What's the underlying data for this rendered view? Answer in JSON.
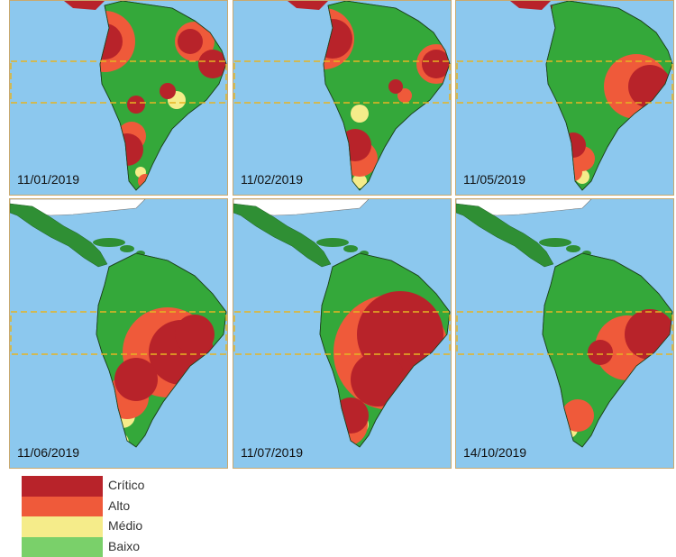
{
  "panels": [
    {
      "date": "11/01/2019",
      "view": "south",
      "crit": [
        [
          105,
          45,
          20
        ],
        [
          200,
          45,
          14
        ],
        [
          225,
          70,
          16
        ],
        [
          130,
          165,
          18
        ],
        [
          175,
          100,
          9
        ],
        [
          140,
          115,
          10
        ]
      ],
      "alto": [
        [
          105,
          45,
          34
        ],
        [
          205,
          45,
          22
        ],
        [
          135,
          150,
          16
        ],
        [
          150,
          200,
          8
        ]
      ],
      "medio": [
        [
          185,
          110,
          10
        ],
        [
          145,
          190,
          6
        ]
      ]
    },
    {
      "date": "11/02/2019",
      "view": "south",
      "crit": [
        [
          110,
          42,
          22
        ],
        [
          225,
          70,
          16
        ],
        [
          135,
          160,
          18
        ],
        [
          180,
          95,
          8
        ]
      ],
      "alto": [
        [
          100,
          42,
          34
        ],
        [
          225,
          70,
          22
        ],
        [
          140,
          175,
          20
        ],
        [
          190,
          105,
          8
        ]
      ],
      "medio": [
        [
          140,
          125,
          10
        ],
        [
          140,
          200,
          8
        ]
      ]
    },
    {
      "date": "11/05/2019",
      "view": "south",
      "crit": [
        [
          215,
          95,
          24
        ],
        [
          130,
          160,
          14
        ],
        [
          95,
          5,
          12
        ]
      ],
      "alto": [
        [
          200,
          95,
          36
        ],
        [
          140,
          175,
          14
        ],
        [
          130,
          190,
          10
        ]
      ],
      "medio": [
        [
          140,
          195,
          8
        ]
      ]
    },
    {
      "date": "11/06/2019",
      "view": "all",
      "crit": [
        [
          190,
          170,
          36
        ],
        [
          140,
          200,
          24
        ],
        [
          205,
          150,
          22
        ],
        [
          25,
          40,
          10
        ]
      ],
      "alto": [
        [
          175,
          170,
          50
        ],
        [
          130,
          220,
          24
        ]
      ],
      "medio": [
        [
          125,
          240,
          14
        ],
        [
          120,
          270,
          12
        ]
      ]
    },
    {
      "date": "11/07/2019",
      "view": "all",
      "crit": [
        [
          185,
          150,
          48
        ],
        [
          160,
          200,
          30
        ],
        [
          40,
          40,
          10
        ],
        [
          130,
          240,
          20
        ]
      ],
      "alto": [
        [
          175,
          170,
          64
        ],
        [
          125,
          250,
          24
        ]
      ],
      "medio": [
        [
          120,
          270,
          12
        ],
        [
          140,
          250,
          10
        ]
      ]
    },
    {
      "date": "14/10/2019",
      "view": "all",
      "crit": [
        [
          215,
          150,
          28
        ],
        [
          160,
          170,
          14
        ],
        [
          25,
          40,
          10
        ],
        [
          120,
          280,
          8
        ]
      ],
      "alto": [
        [
          190,
          165,
          36
        ],
        [
          135,
          240,
          18
        ],
        [
          110,
          50,
          8
        ]
      ],
      "medio": [
        [
          125,
          255,
          10
        ]
      ]
    }
  ],
  "legend": [
    {
      "label": "Crítico",
      "color": "#b8232a"
    },
    {
      "label": "Alto",
      "color": "#ef5a3a"
    },
    {
      "label": "Médio",
      "color": "#f5ec8a"
    },
    {
      "label": "Baixo",
      "color": "#7ad06a"
    }
  ]
}
